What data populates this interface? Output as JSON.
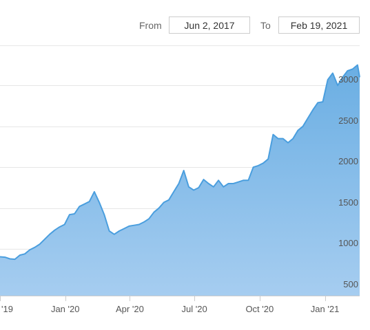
{
  "range_selector": {
    "from_label": "From",
    "from_value": "Jun 2, 2017",
    "to_label": "To",
    "to_value": "Feb 19, 2021"
  },
  "chart_data": {
    "type": "area",
    "title": "",
    "xlabel": "",
    "ylabel": "",
    "x_tick_labels": [
      "'19",
      "Jan '20",
      "Apr '20",
      "Jul '20",
      "Oct '20",
      "Jan '21"
    ],
    "y_tick_labels": [
      "500",
      "1000",
      "1500",
      "2000",
      "2500",
      "3000"
    ],
    "y_ticks": [
      500,
      1000,
      1500,
      2000,
      2500,
      3000
    ],
    "ylim": [
      430,
      3490
    ],
    "xlim": [
      "2019-10-01",
      "2021-02-19"
    ],
    "grid": "horizontal",
    "color": "#4a9ede",
    "fill_color": "#7cb8e8",
    "x": [
      "2019-10-01",
      "2019-10-08",
      "2019-10-15",
      "2019-10-22",
      "2019-10-29",
      "2019-11-05",
      "2019-11-12",
      "2019-11-19",
      "2019-11-26",
      "2019-12-03",
      "2019-12-10",
      "2019-12-17",
      "2019-12-24",
      "2019-12-31",
      "2020-01-07",
      "2020-01-14",
      "2020-01-21",
      "2020-01-28",
      "2020-02-04",
      "2020-02-11",
      "2020-02-18",
      "2020-02-25",
      "2020-03-03",
      "2020-03-10",
      "2020-03-17",
      "2020-03-24",
      "2020-03-31",
      "2020-04-07",
      "2020-04-14",
      "2020-04-21",
      "2020-04-28",
      "2020-05-05",
      "2020-05-12",
      "2020-05-19",
      "2020-05-26",
      "2020-06-02",
      "2020-06-09",
      "2020-06-16",
      "2020-06-23",
      "2020-06-30",
      "2020-07-07",
      "2020-07-14",
      "2020-07-21",
      "2020-07-28",
      "2020-08-04",
      "2020-08-11",
      "2020-08-18",
      "2020-08-25",
      "2020-09-01",
      "2020-09-08",
      "2020-09-15",
      "2020-09-22",
      "2020-09-29",
      "2020-10-06",
      "2020-10-13",
      "2020-10-20",
      "2020-10-27",
      "2020-11-03",
      "2020-11-10",
      "2020-11-17",
      "2020-11-24",
      "2020-12-01",
      "2020-12-08",
      "2020-12-15",
      "2020-12-22",
      "2020-12-29",
      "2021-01-05",
      "2021-01-12",
      "2021-01-19",
      "2021-01-26",
      "2021-02-02",
      "2021-02-09",
      "2021-02-16",
      "2021-02-19"
    ],
    "y": [
      905,
      900,
      880,
      875,
      925,
      940,
      990,
      1020,
      1060,
      1120,
      1180,
      1230,
      1270,
      1300,
      1420,
      1430,
      1520,
      1550,
      1580,
      1700,
      1570,
      1420,
      1220,
      1180,
      1220,
      1250,
      1280,
      1290,
      1300,
      1330,
      1370,
      1450,
      1500,
      1570,
      1600,
      1700,
      1800,
      1960,
      1760,
      1720,
      1750,
      1850,
      1800,
      1760,
      1840,
      1760,
      1800,
      1800,
      1820,
      1840,
      1840,
      2000,
      2020,
      2050,
      2100,
      2400,
      2350,
      2350,
      2300,
      2350,
      2450,
      2500,
      2600,
      2700,
      2790,
      2800,
      3070,
      3150,
      3000,
      3100,
      3180,
      3200,
      3250,
      3100
    ]
  }
}
